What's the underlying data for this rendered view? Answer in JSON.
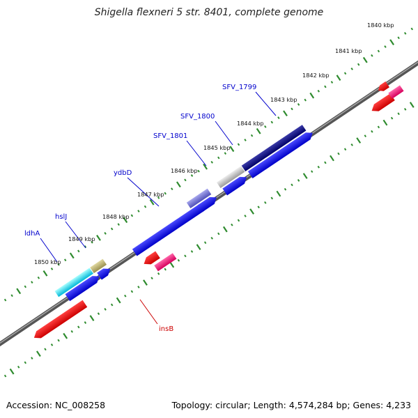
{
  "title": "Shigella flexneri 5 str. 8401, complete genome",
  "footer": {
    "accession": "Accession: NC_008258",
    "topology": "Topology: circular; Length: 4,574,284 bp; Genes: 4,233"
  },
  "colors": {
    "gene_label": "#0000cc",
    "highlight_label": "#cc0000",
    "tick": "#2e8b2e",
    "forward_gene": "#0000ee",
    "reverse_gene": "#ee0000",
    "pink_feature": "#ee1177"
  },
  "kbp_labels": [
    "1840 kbp",
    "1841 kbp",
    "1842 kbp",
    "1843 kbp",
    "1844 kbp",
    "1845 kbp",
    "1846 kbp",
    "1847 kbp",
    "1848 kbp",
    "1849 kbp",
    "1850 kbp"
  ],
  "gene_labels": [
    {
      "text": "SFV_1799",
      "color": "blue"
    },
    {
      "text": "SFV_1800",
      "color": "blue"
    },
    {
      "text": "SFV_1801",
      "color": "blue"
    },
    {
      "text": "ydbD",
      "color": "blue"
    },
    {
      "text": "hslJ",
      "color": "blue"
    },
    {
      "text": "ldhA",
      "color": "blue"
    },
    {
      "text": "insB",
      "color": "red"
    }
  ]
}
